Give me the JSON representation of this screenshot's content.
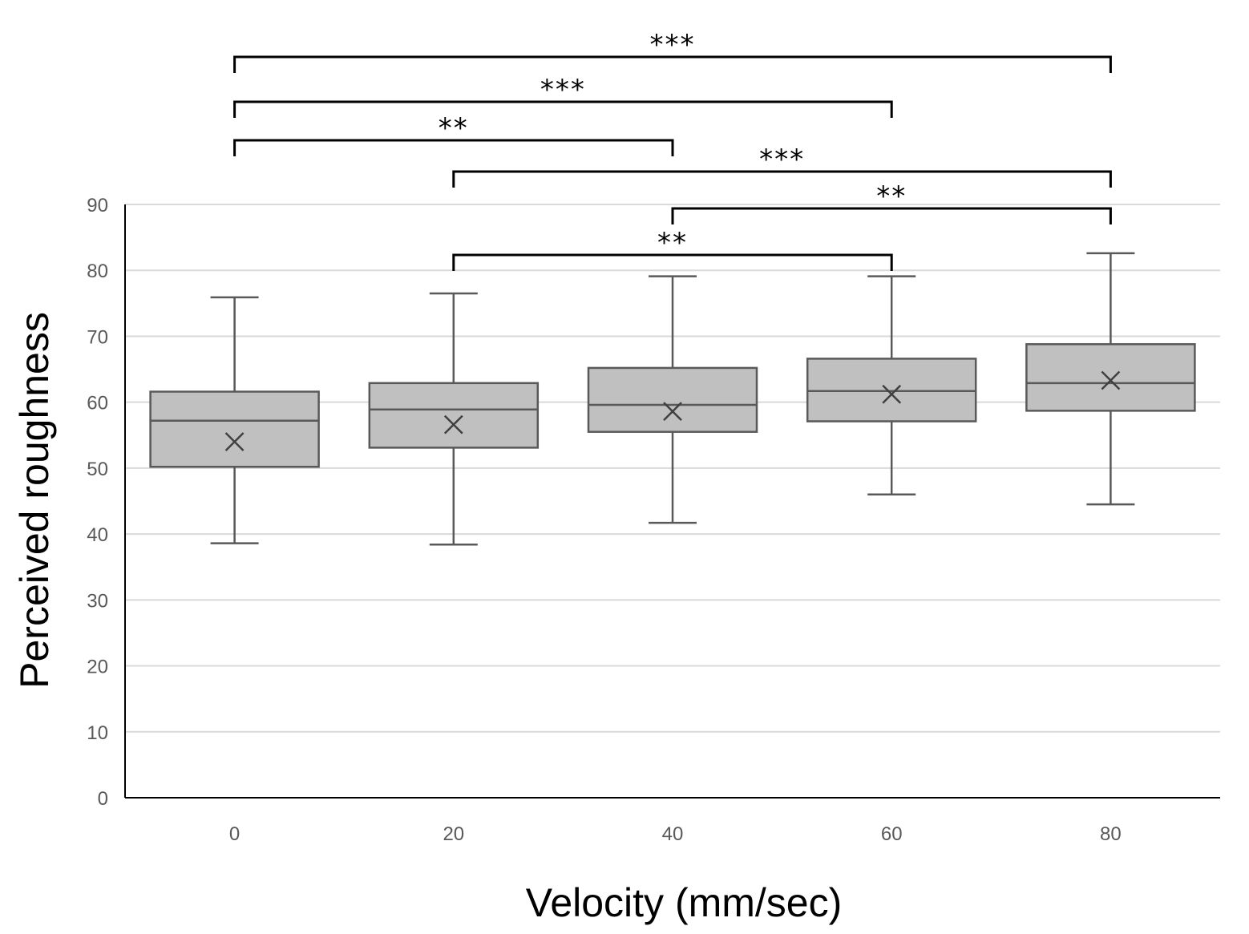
{
  "chart_data": {
    "type": "box",
    "xlabel": "Velocity (mm/sec)",
    "ylabel": "Perceived roughness",
    "ylim": [
      0,
      90
    ],
    "y_ticks": [
      "0",
      "10",
      "20",
      "30",
      "40",
      "50",
      "60",
      "70",
      "80",
      "90"
    ],
    "categories": [
      "0",
      "20",
      "40",
      "60",
      "80"
    ],
    "grid": true,
    "boxes": [
      {
        "category": "0",
        "min": 38.6,
        "q1": 50.2,
        "median": 57.2,
        "q3": 61.6,
        "max": 75.9,
        "mean": 54.0
      },
      {
        "category": "20",
        "min": 38.4,
        "q1": 53.1,
        "median": 58.9,
        "q3": 62.9,
        "max": 76.5,
        "mean": 56.6
      },
      {
        "category": "40",
        "min": 41.7,
        "q1": 55.5,
        "median": 59.6,
        "q3": 65.2,
        "max": 79.1,
        "mean": 58.6
      },
      {
        "category": "60",
        "min": 46.0,
        "q1": 57.1,
        "median": 61.7,
        "q3": 66.6,
        "max": 79.1,
        "mean": 61.2
      },
      {
        "category": "80",
        "min": 44.5,
        "q1": 58.7,
        "median": 62.9,
        "q3": 68.8,
        "max": 82.6,
        "mean": 63.3
      }
    ],
    "significance": [
      {
        "from": "0",
        "to": "80",
        "label": "***"
      },
      {
        "from": "0",
        "to": "60",
        "label": "***"
      },
      {
        "from": "0",
        "to": "40",
        "label": "**"
      },
      {
        "from": "20",
        "to": "80",
        "label": "***"
      },
      {
        "from": "40",
        "to": "80",
        "label": "**"
      },
      {
        "from": "20",
        "to": "60",
        "label": "**"
      }
    ],
    "colors": {
      "box_fill": "#c0c0c0",
      "box_stroke": "#595959",
      "grid": "#d9d9d9",
      "axis": "#000000",
      "bracket": "#000000"
    }
  }
}
